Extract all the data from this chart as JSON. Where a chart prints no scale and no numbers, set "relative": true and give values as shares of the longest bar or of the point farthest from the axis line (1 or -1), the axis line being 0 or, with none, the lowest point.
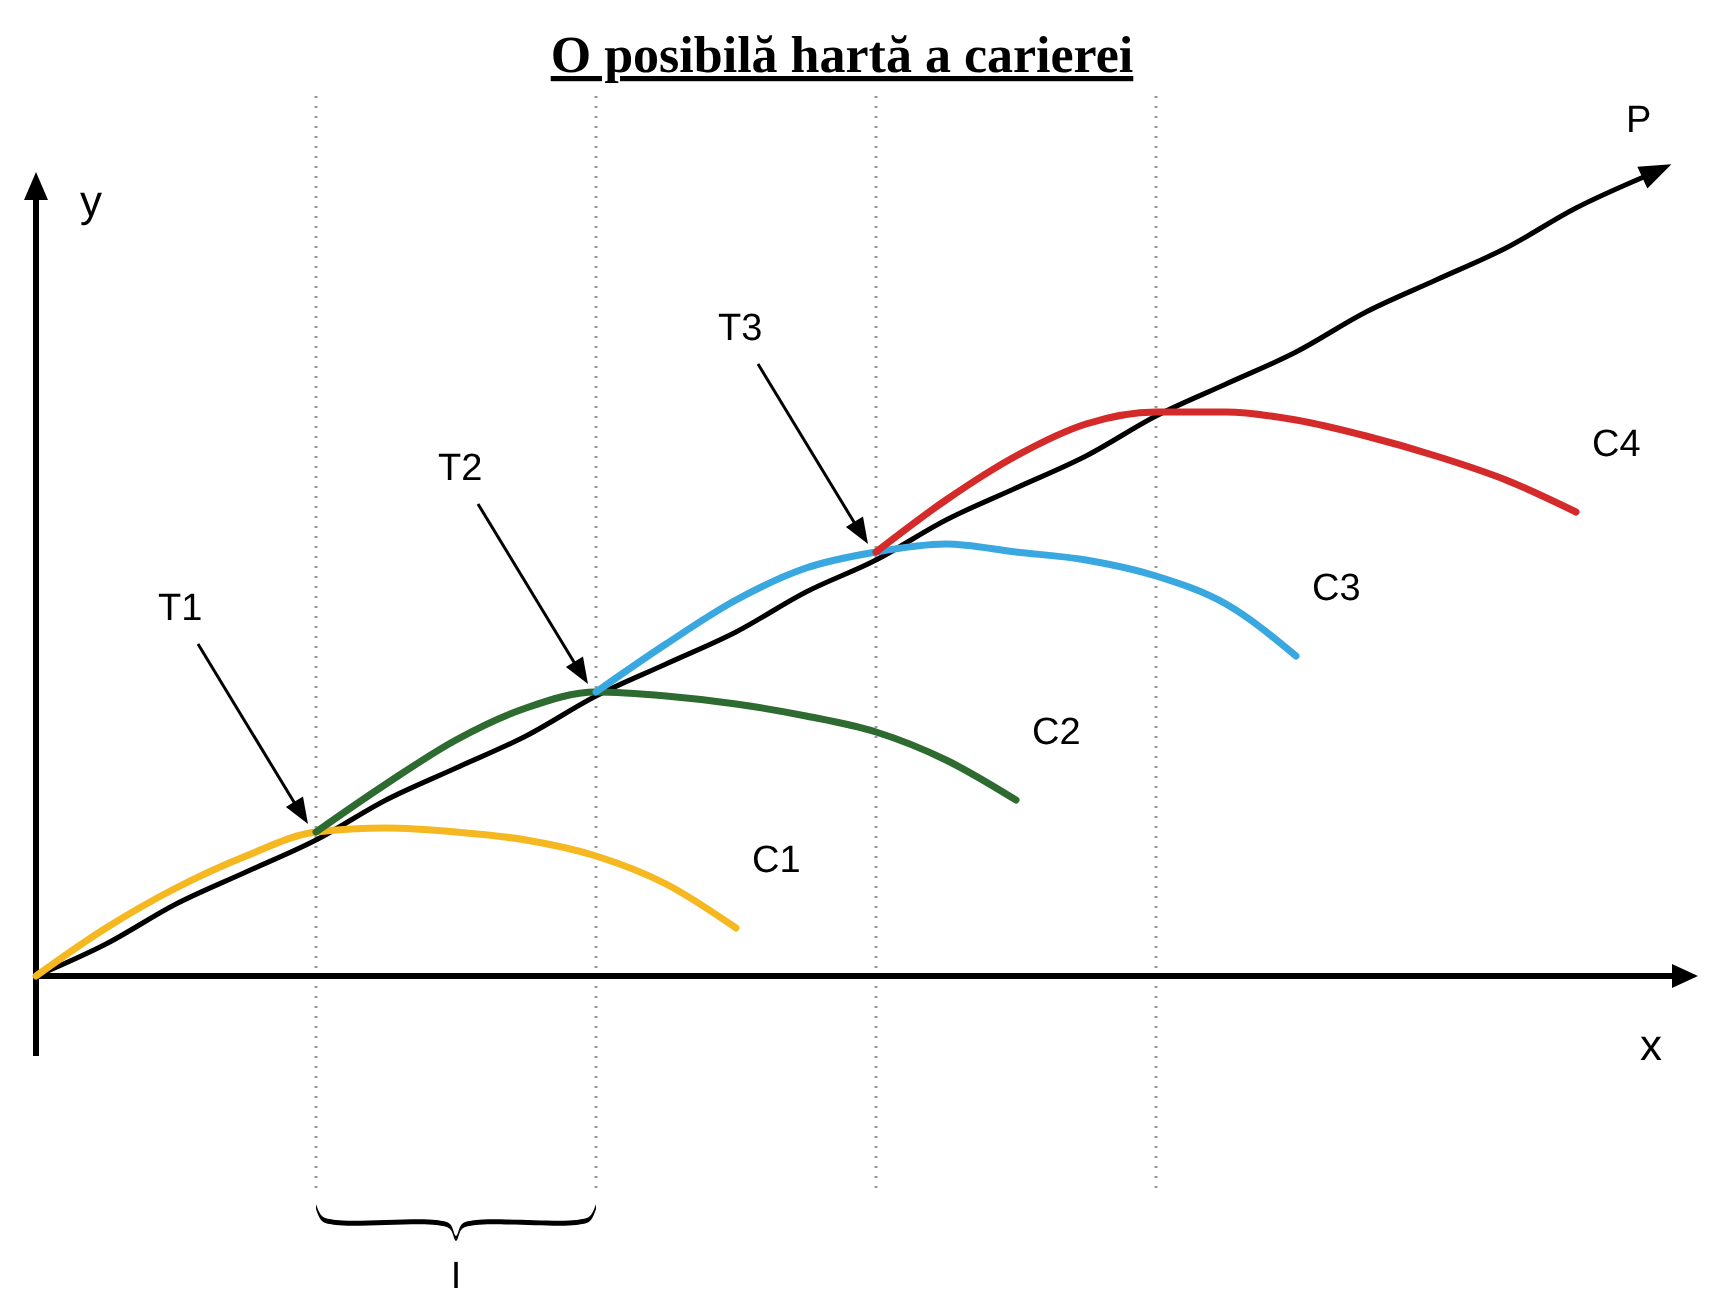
{
  "chart_data": {
    "type": "line",
    "title": "O posibilă hartă a carierei",
    "xlabel": "x",
    "ylabel": "y",
    "relative": true,
    "line_style": "solid",
    "grid": "x",
    "categories": [
      null,
      null,
      null,
      null,
      null,
      null,
      null,
      null,
      null,
      null,
      null,
      null,
      null,
      null,
      null,
      null,
      null,
      null,
      null,
      null,
      null,
      null,
      null,
      null
    ],
    "series": [
      {
        "name": "P",
        "color": "#000000",
        "values": [
          0,
          0.04,
          0.09,
          0.13,
          0.17,
          0.22,
          0.26,
          0.3,
          0.35,
          0.39,
          0.43,
          0.48,
          0.52,
          0.57,
          0.61,
          0.65,
          0.7,
          0.74,
          0.78,
          0.83,
          0.87,
          0.91,
          0.96,
          1
        ]
      },
      {
        "name": "C1",
        "color": "#f5b820",
        "values": [
          0,
          0.06,
          0.11,
          0.15,
          0.18,
          0.185,
          0.18,
          0.17,
          0.15,
          0.115,
          0.06,
          null,
          null,
          null,
          null,
          null,
          null,
          null,
          null,
          null,
          null,
          null,
          null,
          null
        ]
      },
      {
        "name": "C2",
        "color": "#2e6b30",
        "values": [
          null,
          null,
          null,
          null,
          0.18,
          0.24,
          0.295,
          0.335,
          0.355,
          0.35,
          0.34,
          0.325,
          0.305,
          0.27,
          0.22,
          null,
          null,
          null,
          null,
          null,
          null,
          null,
          null,
          null
        ]
      },
      {
        "name": "C3",
        "color": "#3aa8e0",
        "values": [
          null,
          null,
          null,
          null,
          null,
          null,
          null,
          null,
          0.355,
          0.415,
          0.47,
          0.51,
          0.53,
          0.54,
          0.53,
          0.52,
          0.5,
          0.465,
          0.4,
          null,
          null,
          null,
          null,
          null
        ]
      },
      {
        "name": "C4",
        "color": "#d42a2a",
        "values": [
          null,
          null,
          null,
          null,
          null,
          null,
          null,
          null,
          null,
          null,
          null,
          null,
          0.53,
          0.595,
          0.65,
          0.69,
          0.705,
          0.705,
          0.695,
          0.675,
          0.65,
          0.62,
          0.58,
          null
        ]
      }
    ],
    "annotations": [
      "T1",
      "T2",
      "T3",
      "I"
    ]
  }
}
